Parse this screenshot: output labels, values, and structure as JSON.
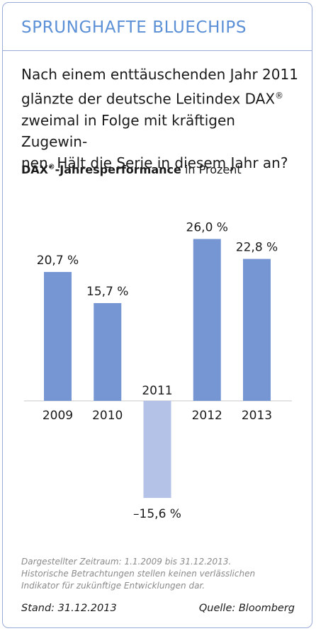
{
  "header": {
    "title": "SPRUNGHAFTE BLUECHIPS"
  },
  "intro": {
    "line1": "Nach einem enttäuschenden Jahr 2011",
    "line2_pre": "glänzte der deutsche Leitindex DAX",
    "line3": "zweimal in Folge mit kräftigen Zugewin-",
    "line4": "nen. Hält die Serie in diesem Jahr an?",
    "registered_mark": "®"
  },
  "chart_title": {
    "bold": "DAX",
    "registered_mark": "®",
    "bold_rest": "-Jahresperformance",
    "normal": " in Prozent"
  },
  "chart_data": {
    "type": "bar",
    "title": "DAX®-Jahresperformance in Prozent",
    "categories": [
      "2009",
      "2010",
      "2011",
      "2012",
      "2013"
    ],
    "values": [
      20.7,
      15.7,
      -15.6,
      26.0,
      22.8
    ],
    "value_labels": [
      "20,7 %",
      "15,7 %",
      "–15,6 %",
      "26,0 %",
      "22,8 %"
    ],
    "unit": "%",
    "colors": {
      "positive": "#7596d3",
      "negative": "#b3c2e6"
    },
    "grid": false,
    "legend": "none",
    "ylim": [
      -15.6,
      26.0
    ]
  },
  "footer": {
    "note_line1": "Dargestellter Zeitraum: 1.1.2009 bis 31.12.2013.",
    "note_line2": "Historische Betrachtungen stellen keinen verlässlichen",
    "note_line3": "Indikator für zukünftige Entwicklungen dar.",
    "stand": "Stand: 31.12.2013",
    "source": "Quelle: Bloomberg"
  },
  "colors": {
    "accent": "#5b8fd6",
    "border": "#9aaad6"
  }
}
